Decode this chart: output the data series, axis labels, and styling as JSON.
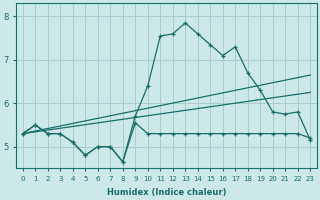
{
  "xlabel": "Humidex (Indice chaleur)",
  "bg_color": "#cce8e8",
  "grid_color": "#aacccc",
  "line_color": "#1a6e6a",
  "xlim": [
    -0.5,
    23.5
  ],
  "ylim": [
    4.5,
    8.3
  ],
  "xticks": [
    0,
    1,
    2,
    3,
    4,
    5,
    6,
    7,
    8,
    9,
    10,
    11,
    12,
    13,
    14,
    15,
    16,
    17,
    18,
    19,
    20,
    21,
    22,
    23
  ],
  "yticks": [
    5,
    6,
    7,
    8
  ],
  "curve_x": [
    0,
    1,
    2,
    3,
    4,
    5,
    6,
    7,
    8,
    9,
    10,
    11,
    12,
    13,
    14,
    15,
    16,
    17,
    18,
    19,
    20,
    21,
    22,
    23
  ],
  "curve_y": [
    5.3,
    5.5,
    5.3,
    5.3,
    5.1,
    4.8,
    5.0,
    5.0,
    4.65,
    5.7,
    6.4,
    7.55,
    7.6,
    7.85,
    7.6,
    7.35,
    7.1,
    7.3,
    6.7,
    6.3,
    5.8,
    5.75,
    5.8,
    5.15
  ],
  "flat_x": [
    0,
    1,
    2,
    3,
    4,
    5,
    6,
    7,
    8,
    9,
    10,
    11,
    12,
    13,
    14,
    15,
    16,
    17,
    18,
    19,
    20,
    21,
    22,
    23
  ],
  "flat_y": [
    5.3,
    5.5,
    5.3,
    5.3,
    5.1,
    4.8,
    5.0,
    5.0,
    4.65,
    5.55,
    5.3,
    5.3,
    5.3,
    5.3,
    5.3,
    5.3,
    5.3,
    5.3,
    5.3,
    5.3,
    5.3,
    5.3,
    5.3,
    5.2
  ],
  "line1_x": [
    0,
    23
  ],
  "line1_y": [
    5.3,
    6.65
  ],
  "line2_x": [
    0,
    23
  ],
  "line2_y": [
    5.3,
    6.25
  ]
}
